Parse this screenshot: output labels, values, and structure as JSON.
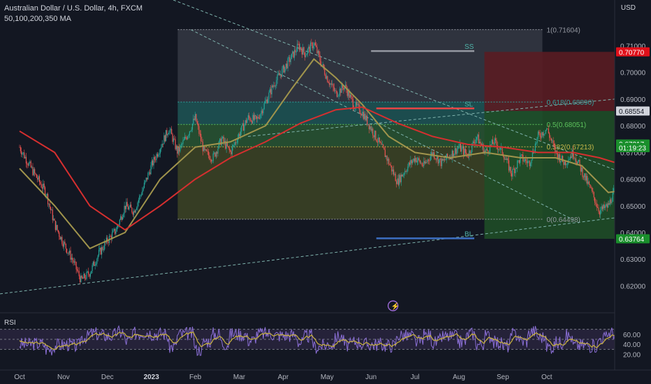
{
  "header": {
    "title": "Australian Dollar / U.S. Dollar, 4h, FXCM",
    "ma_label": "50,100,200,350 MA",
    "currency": "USD"
  },
  "colors": {
    "background": "#131722",
    "axis_text": "#b2b5be",
    "fib_zone_top": "#3a3d48",
    "fib_zone_teal": "#1f5a5a",
    "fib_zone_olive": "#3d4424",
    "target_zone": "#1f4d27",
    "stop_zone": "#5a1c22",
    "ma_fast": "#a0944c",
    "ma_slow": "#d62f2f",
    "ss_line": "#9598a1",
    "sl_line": "#e44545",
    "bl_line": "#3d6fc2",
    "rsi_line": "#8b6fd6",
    "rsi_ma": "#c9b23f",
    "trend_dash": "#7fb3ad",
    "up_candle": "#26a69a",
    "down_candle": "#ef5350"
  },
  "chart_data": {
    "type": "candlestick",
    "symbol": "AUDUSD",
    "timeframe": "4h",
    "x_labels": [
      "Oct",
      "Nov",
      "Dec",
      "2023",
      "Feb",
      "Mar",
      "Apr",
      "May",
      "Jun",
      "Jul",
      "Aug",
      "Sep",
      "Oct"
    ],
    "y_ticks": [
      "0.71000",
      "0.70000",
      "0.69000",
      "0.68000",
      "0.67000",
      "0.66000",
      "0.65000",
      "0.64000",
      "0.63000",
      "0.62000"
    ],
    "ylim": [
      0.612,
      0.724
    ],
    "price_path": [
      [
        0,
        0.672
      ],
      [
        0.3,
        0.663
      ],
      [
        0.6,
        0.655
      ],
      [
        0.8,
        0.643
      ],
      [
        1.0,
        0.636
      ],
      [
        1.2,
        0.63
      ],
      [
        1.4,
        0.622
      ],
      [
        1.6,
        0.625
      ],
      [
        1.8,
        0.632
      ],
      [
        2.0,
        0.637
      ],
      [
        2.2,
        0.641
      ],
      [
        2.4,
        0.65
      ],
      [
        2.6,
        0.648
      ],
      [
        2.8,
        0.656
      ],
      [
        3.0,
        0.665
      ],
      [
        3.2,
        0.672
      ],
      [
        3.4,
        0.679
      ],
      [
        3.6,
        0.67
      ],
      [
        3.8,
        0.676
      ],
      [
        4.0,
        0.683
      ],
      [
        4.2,
        0.67
      ],
      [
        4.4,
        0.668
      ],
      [
        4.6,
        0.675
      ],
      [
        4.8,
        0.67
      ],
      [
        5.0,
        0.677
      ],
      [
        5.2,
        0.683
      ],
      [
        5.4,
        0.682
      ],
      [
        5.6,
        0.689
      ],
      [
        5.8,
        0.696
      ],
      [
        6.0,
        0.701
      ],
      [
        6.2,
        0.706
      ],
      [
        6.35,
        0.71
      ],
      [
        6.5,
        0.707
      ],
      [
        6.7,
        0.711
      ],
      [
        6.85,
        0.704
      ],
      [
        7.0,
        0.698
      ],
      [
        7.2,
        0.692
      ],
      [
        7.4,
        0.695
      ],
      [
        7.6,
        0.688
      ],
      [
        7.8,
        0.685
      ],
      [
        8.0,
        0.679
      ],
      [
        8.3,
        0.67
      ],
      [
        8.6,
        0.659
      ],
      [
        8.8,
        0.664
      ],
      [
        9.0,
        0.668
      ],
      [
        9.2,
        0.665
      ],
      [
        9.4,
        0.67
      ],
      [
        9.6,
        0.666
      ],
      [
        9.8,
        0.669
      ],
      [
        10.0,
        0.672
      ],
      [
        10.2,
        0.669
      ],
      [
        10.4,
        0.676
      ],
      [
        10.6,
        0.67
      ],
      [
        10.8,
        0.674
      ],
      [
        11.0,
        0.67
      ],
      [
        11.2,
        0.662
      ],
      [
        11.4,
        0.668
      ],
      [
        11.6,
        0.666
      ],
      [
        11.8,
        0.676
      ],
      [
        12.0,
        0.679
      ],
      [
        12.2,
        0.67
      ],
      [
        12.4,
        0.666
      ],
      [
        12.6,
        0.67
      ],
      [
        12.8,
        0.663
      ],
      [
        13.0,
        0.656
      ],
      [
        13.2,
        0.648
      ],
      [
        13.4,
        0.65
      ],
      [
        13.6,
        0.658
      ],
      [
        13.8,
        0.664
      ],
      [
        14.0,
        0.67
      ],
      [
        14.2,
        0.674
      ],
      [
        14.4,
        0.678
      ],
      [
        14.6,
        0.679
      ]
    ],
    "moving_averages": [
      {
        "color": "#a0944c",
        "points": [
          [
            0,
            0.664
          ],
          [
            0.8,
            0.65
          ],
          [
            1.6,
            0.634
          ],
          [
            2.4,
            0.64
          ],
          [
            3.2,
            0.66
          ],
          [
            4.0,
            0.672
          ],
          [
            4.8,
            0.674
          ],
          [
            5.6,
            0.68
          ],
          [
            6.2,
            0.694
          ],
          [
            6.7,
            0.705
          ],
          [
            7.2,
            0.698
          ],
          [
            7.8,
            0.688
          ],
          [
            8.4,
            0.676
          ],
          [
            9.0,
            0.67
          ],
          [
            9.8,
            0.668
          ],
          [
            10.6,
            0.67
          ],
          [
            11.4,
            0.668
          ],
          [
            12.2,
            0.668
          ],
          [
            12.8,
            0.665
          ],
          [
            13.4,
            0.655
          ],
          [
            13.8,
            0.656
          ],
          [
            14.2,
            0.664
          ],
          [
            14.6,
            0.67
          ]
        ]
      },
      {
        "color": "#d62f2f",
        "points": [
          [
            0,
            0.678
          ],
          [
            0.8,
            0.67
          ],
          [
            1.6,
            0.65
          ],
          [
            2.4,
            0.641
          ],
          [
            3.2,
            0.65
          ],
          [
            4.0,
            0.66
          ],
          [
            4.8,
            0.668
          ],
          [
            5.6,
            0.674
          ],
          [
            6.4,
            0.681
          ],
          [
            7.2,
            0.686
          ],
          [
            7.8,
            0.687
          ],
          [
            8.6,
            0.681
          ],
          [
            9.4,
            0.676
          ],
          [
            10.2,
            0.673
          ],
          [
            11.0,
            0.672
          ],
          [
            11.8,
            0.67
          ],
          [
            12.6,
            0.67
          ],
          [
            13.2,
            0.668
          ],
          [
            13.8,
            0.665
          ],
          [
            14.4,
            0.665
          ]
        ]
      }
    ],
    "fibonacci": {
      "levels": [
        {
          "label": "1(0.71604)",
          "value": 0.71604
        },
        {
          "label": "0.618(0.68890)",
          "value": 0.6889
        },
        {
          "label": "0.5(0.68051)",
          "value": 0.68051
        },
        {
          "label": "0.382(0.67213)",
          "value": 0.67213
        },
        {
          "label": "0(0.64498)",
          "value": 0.64498
        }
      ]
    },
    "horizontal_levels": [
      {
        "label": "SS",
        "value": 0.708
      },
      {
        "label": "SL",
        "value": 0.6865
      },
      {
        "label": "BL",
        "value": 0.6378
      }
    ],
    "price_tags": [
      {
        "label": "0.70770",
        "value": 0.7077,
        "bg": "#e0101a",
        "fg": "#ffffff"
      },
      {
        "label": "0.68554",
        "value": 0.68554,
        "bg": "#d1d4dc",
        "fg": "#131722"
      },
      {
        "label": "0.67317",
        "value": 0.67317,
        "bg": "#1a8f2c",
        "fg": "#ffffff"
      },
      {
        "label": "01:19:23",
        "value": 0.6718,
        "bg": "#1a8f2c",
        "fg": "#ffffff"
      },
      {
        "label": "0.63764",
        "value": 0.63764,
        "bg": "#1a8f2c",
        "fg": "#ffffff"
      }
    ],
    "rsi": {
      "label": "RSI",
      "ticks": [
        "60.00",
        "40.00",
        "20.00"
      ],
      "upper_band": 70,
      "lower_band": 30
    }
  }
}
